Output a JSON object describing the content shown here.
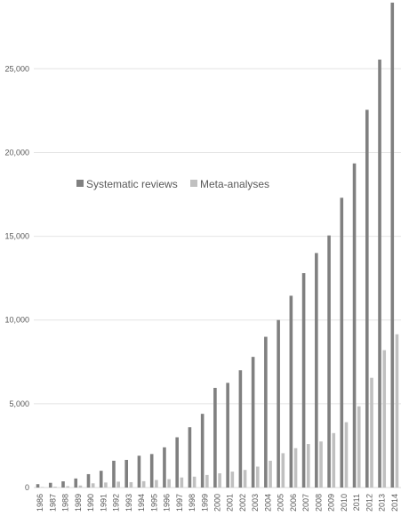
{
  "chart_data": {
    "type": "bar",
    "title": "",
    "xlabel": "",
    "ylabel": "",
    "ylim": [
      0,
      29000
    ],
    "yticks": [
      0,
      5000,
      10000,
      15000,
      20000,
      25000
    ],
    "ytick_labels": [
      "0",
      "5,000",
      "10,000",
      "15,000",
      "20,000",
      "25,000"
    ],
    "grid": "horizontal",
    "legend_position": "upper-left inside",
    "categories": [
      "1986",
      "1987",
      "1988",
      "1989",
      "1990",
      "1991",
      "1992",
      "1993",
      "1994",
      "1995",
      "1996",
      "1997",
      "1998",
      "1999",
      "2000",
      "2001",
      "2002",
      "2003",
      "2004",
      "2005",
      "2006",
      "2007",
      "2008",
      "2009",
      "2010",
      "2011",
      "2012",
      "2013",
      "2014"
    ],
    "series": [
      {
        "name": "Systematic reviews",
        "color": "#808080",
        "values": [
          200,
          280,
          370,
          540,
          800,
          1000,
          1600,
          1650,
          1900,
          2000,
          2400,
          3000,
          3600,
          4400,
          5950,
          6250,
          7000,
          7800,
          9000,
          10000,
          11450,
          12800,
          14000,
          15050,
          17300,
          19350,
          22550,
          25550,
          28950
        ]
      },
      {
        "name": "Meta-analyses",
        "color": "#c0c0c0",
        "values": [
          30,
          50,
          80,
          120,
          250,
          300,
          350,
          320,
          380,
          450,
          500,
          600,
          650,
          750,
          850,
          950,
          1050,
          1250,
          1600,
          2050,
          2350,
          2600,
          2750,
          3250,
          3900,
          4850,
          6550,
          8200,
          9150
        ]
      }
    ]
  }
}
